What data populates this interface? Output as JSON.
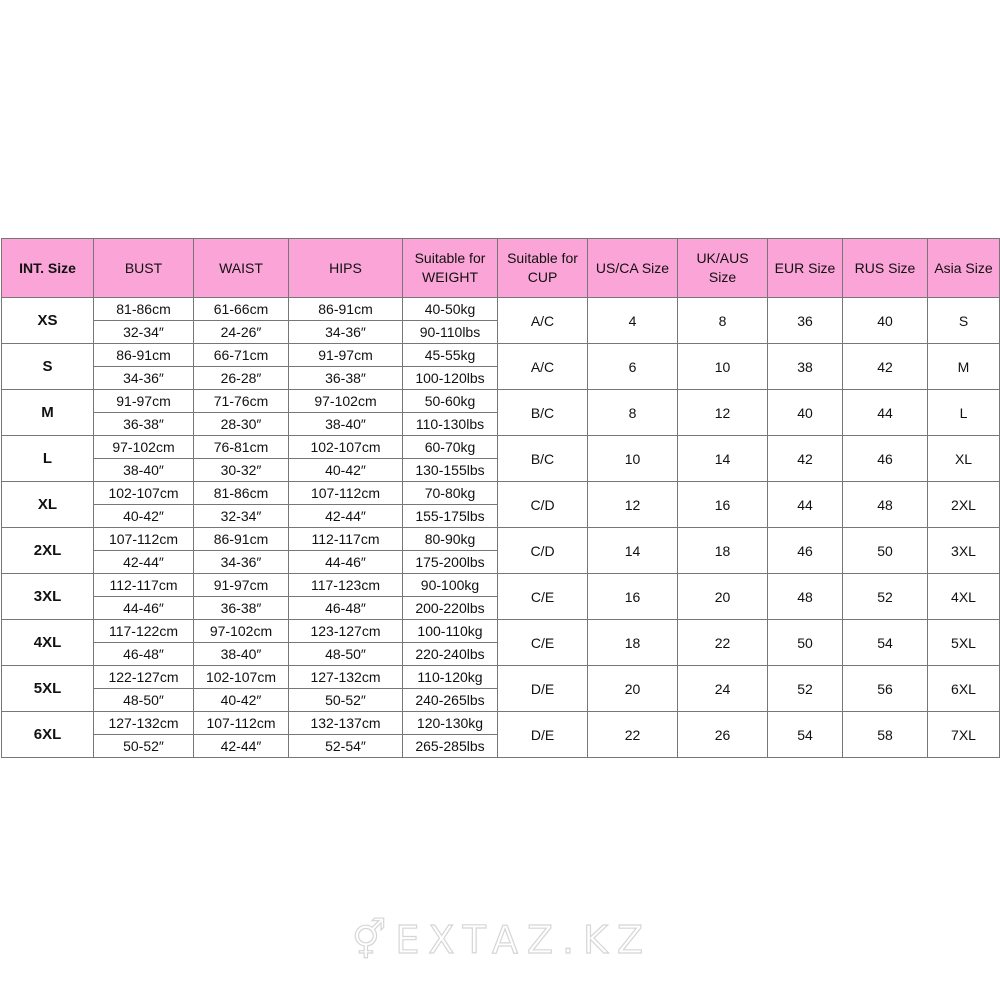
{
  "headers": [
    "INT. Size",
    "BUST",
    "WAIST",
    "HIPS",
    "Suitable for WEIGHT",
    "Suitable for CUP",
    "US/CA Size",
    "UK/AUS Size",
    "EUR Size",
    "RUS Size",
    "Asia Size"
  ],
  "rows": [
    {
      "int": "XS",
      "bust": [
        "81-86cm",
        "32-34″"
      ],
      "waist": [
        "61-66cm",
        "24-26″"
      ],
      "hips": [
        "86-91cm",
        "34-36″"
      ],
      "weight": [
        "40-50kg",
        "90-110lbs"
      ],
      "cup": "A/C",
      "us": "4",
      "uk": "8",
      "eur": "36",
      "rus": "40",
      "asia": "S"
    },
    {
      "int": "S",
      "bust": [
        "86-91cm",
        "34-36″"
      ],
      "waist": [
        "66-71cm",
        "26-28″"
      ],
      "hips": [
        "91-97cm",
        "36-38″"
      ],
      "weight": [
        "45-55kg",
        "100-120lbs"
      ],
      "cup": "A/C",
      "us": "6",
      "uk": "10",
      "eur": "38",
      "rus": "42",
      "asia": "M"
    },
    {
      "int": "M",
      "bust": [
        "91-97cm",
        "36-38″"
      ],
      "waist": [
        "71-76cm",
        "28-30″"
      ],
      "hips": [
        "97-102cm",
        "38-40″"
      ],
      "weight": [
        "50-60kg",
        "110-130lbs"
      ],
      "cup": "B/C",
      "us": "8",
      "uk": "12",
      "eur": "40",
      "rus": "44",
      "asia": "L"
    },
    {
      "int": "L",
      "bust": [
        "97-102cm",
        "38-40″"
      ],
      "waist": [
        "76-81cm",
        "30-32″"
      ],
      "hips": [
        "102-107cm",
        "40-42″"
      ],
      "weight": [
        "60-70kg",
        "130-155lbs"
      ],
      "cup": "B/C",
      "us": "10",
      "uk": "14",
      "eur": "42",
      "rus": "46",
      "asia": "XL"
    },
    {
      "int": "XL",
      "bust": [
        "102-107cm",
        "40-42″"
      ],
      "waist": [
        "81-86cm",
        "32-34″"
      ],
      "hips": [
        "107-112cm",
        "42-44″"
      ],
      "weight": [
        "70-80kg",
        "155-175lbs"
      ],
      "cup": "C/D",
      "us": "12",
      "uk": "16",
      "eur": "44",
      "rus": "48",
      "asia": "2XL"
    },
    {
      "int": "2XL",
      "bust": [
        "107-112cm",
        "42-44″"
      ],
      "waist": [
        "86-91cm",
        "34-36″"
      ],
      "hips": [
        "112-117cm",
        "44-46″"
      ],
      "weight": [
        "80-90kg",
        "175-200lbs"
      ],
      "cup": "C/D",
      "us": "14",
      "uk": "18",
      "eur": "46",
      "rus": "50",
      "asia": "3XL"
    },
    {
      "int": "3XL",
      "bust": [
        "112-117cm",
        "44-46″"
      ],
      "waist": [
        "91-97cm",
        "36-38″"
      ],
      "hips": [
        "117-123cm",
        "46-48″"
      ],
      "weight": [
        "90-100kg",
        "200-220lbs"
      ],
      "cup": "C/E",
      "us": "16",
      "uk": "20",
      "eur": "48",
      "rus": "52",
      "asia": "4XL"
    },
    {
      "int": "4XL",
      "bust": [
        "117-122cm",
        "46-48″"
      ],
      "waist": [
        "97-102cm",
        "38-40″"
      ],
      "hips": [
        "123-127cm",
        "48-50″"
      ],
      "weight": [
        "100-110kg",
        "220-240lbs"
      ],
      "cup": "C/E",
      "us": "18",
      "uk": "22",
      "eur": "50",
      "rus": "54",
      "asia": "5XL"
    },
    {
      "int": "5XL",
      "bust": [
        "122-127cm",
        "48-50″"
      ],
      "waist": [
        "102-107cm",
        "40-42″"
      ],
      "hips": [
        "127-132cm",
        "50-52″"
      ],
      "weight": [
        "110-120kg",
        "240-265lbs"
      ],
      "cup": "D/E",
      "us": "20",
      "uk": "24",
      "eur": "52",
      "rus": "56",
      "asia": "6XL"
    },
    {
      "int": "6XL",
      "bust": [
        "127-132cm",
        "50-52″"
      ],
      "waist": [
        "107-112cm",
        "42-44″"
      ],
      "hips": [
        "132-137cm",
        "52-54″"
      ],
      "weight": [
        "120-130kg",
        "265-285lbs"
      ],
      "cup": "D/E",
      "us": "22",
      "uk": "26",
      "eur": "54",
      "rus": "58",
      "asia": "7XL"
    }
  ],
  "watermark": "EXTAZ.KZ",
  "colors": {
    "header_bg": "#fba4d7",
    "border": "#777777"
  }
}
